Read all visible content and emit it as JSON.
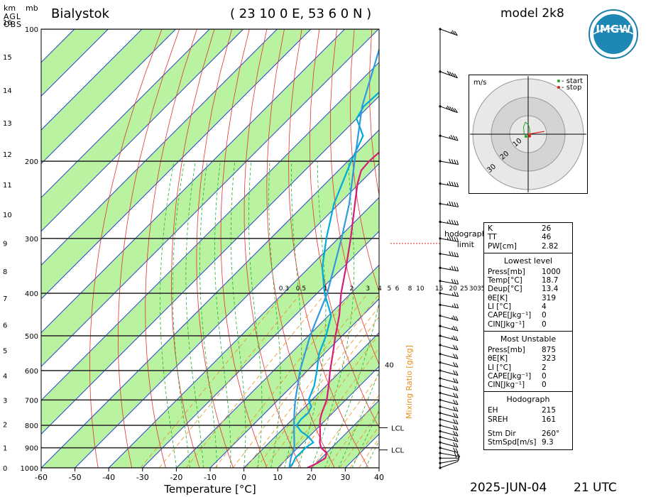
{
  "header": {
    "units_km": "km",
    "units_mb": "mb",
    "agl": "AGL",
    "obs": "OBS",
    "station": "Bialystok",
    "coords": "( 23 10 0 E, 53 6 0 N )",
    "model": "model 2k8",
    "logo_text": "IMGW"
  },
  "footer": {
    "date": "2025-JUN-04",
    "time": "21 UTC"
  },
  "chart_data": {
    "type": "line",
    "subtype": "skew-T log-P thermodynamic diagram",
    "xlabel": "Temperature [°C]",
    "x_ticks": [
      "-60",
      "-50",
      "-40",
      "-30",
      "-20",
      "-10",
      "0",
      "10",
      "20",
      "30",
      "40"
    ],
    "xlim": [
      -60,
      40
    ],
    "ylim_pressure_hpa": [
      1000,
      100
    ],
    "pressure_ticks": [
      "100",
      "200",
      "300",
      "400",
      "500",
      "600",
      "700",
      "800",
      "900",
      "1000"
    ],
    "height_ticks_km": [
      "0",
      "1",
      "2",
      "3",
      "4",
      "5",
      "6",
      "7",
      "8",
      "9",
      "10",
      "11",
      "12",
      "13",
      "14",
      "15",
      "16"
    ],
    "mixing_ratio_label": "Mixing Ratio [g/kg]",
    "mixing_ratio_ticks": [
      "0.3",
      "0.5",
      "1",
      "2",
      "3",
      "4",
      "5",
      "6",
      "8",
      "10",
      "15",
      "20",
      "25",
      "30",
      "35"
    ],
    "mixing_ratio_values": [
      0.3,
      0.5,
      1,
      2,
      3,
      4,
      5,
      6,
      8,
      10,
      15,
      20,
      25,
      30,
      35
    ],
    "lcl_labels": [
      "LCL",
      "LCL"
    ],
    "lcl_pressures": [
      810,
      910
    ],
    "label_40": "40",
    "series": [
      {
        "color": "#d81b7a",
        "pressure": [
          1000,
          975,
          950,
          925,
          900,
          875,
          850,
          825,
          800,
          775,
          750,
          700,
          650,
          600,
          550,
          500,
          450,
          400,
          350,
          300,
          250,
          225,
          210,
          200,
          190,
          175,
          150,
          125,
          100
        ],
        "values": [
          18.7,
          20.3,
          21.2,
          20.1,
          16.9,
          14.9,
          13.4,
          11.7,
          9.9,
          8.2,
          6.8,
          4.4,
          0.8,
          -3.3,
          -7.4,
          -12.0,
          -16.8,
          -22.9,
          -29.0,
          -36.3,
          -45.3,
          -50.5,
          -53.3,
          -53.7,
          -53.3,
          -51.5,
          -47.5,
          -43.5,
          -40.5
        ]
      },
      {
        "color": "#00aadd",
        "pressure": [
          1000,
          975,
          950,
          925,
          900,
          875,
          850,
          825,
          800,
          775,
          750,
          725,
          700,
          650,
          600,
          550,
          500,
          450,
          400,
          350,
          300,
          250,
          200,
          175,
          160,
          150,
          125,
          100
        ],
        "values": [
          13.4,
          13.1,
          12.3,
          12.3,
          12.3,
          13.0,
          10.0,
          6.0,
          3.0,
          2.5,
          2.8,
          1.8,
          -1.0,
          -3.5,
          -7.2,
          -11.5,
          -14.8,
          -19.2,
          -27.8,
          -36.0,
          -43.5,
          -51.5,
          -59.0,
          -63.0,
          -70.0,
          -71.5,
          -70.5,
          -68.5
        ]
      },
      {
        "color": "#3399dd",
        "pressure": [
          1000,
          950,
          900,
          850,
          800,
          750,
          700,
          600,
          500,
          400,
          300,
          250,
          200,
          150,
          100
        ],
        "values": [
          13.4,
          11.0,
          9.0,
          5.7,
          2.2,
          -1.3,
          -4.9,
          -12.2,
          -19.5,
          -27.0,
          -39.0,
          -47.0,
          -58.0,
          -72.0,
          -88.0
        ]
      }
    ],
    "wind_barbs": [
      {
        "p": 100,
        "dir": 290,
        "kt": 25
      },
      {
        "p": 125,
        "dir": 290,
        "kt": 40
      },
      {
        "p": 150,
        "dir": 290,
        "kt": 45
      },
      {
        "p": 175,
        "dir": 285,
        "kt": 35
      },
      {
        "p": 200,
        "dir": 280,
        "kt": 40
      },
      {
        "p": 225,
        "dir": 280,
        "kt": 45
      },
      {
        "p": 250,
        "dir": 280,
        "kt": 45
      },
      {
        "p": 275,
        "dir": 280,
        "kt": 45
      },
      {
        "p": 300,
        "dir": 280,
        "kt": 45
      },
      {
        "p": 325,
        "dir": 280,
        "kt": 40
      },
      {
        "p": 350,
        "dir": 280,
        "kt": 35
      },
      {
        "p": 375,
        "dir": 280,
        "kt": 30
      },
      {
        "p": 400,
        "dir": 280,
        "kt": 25
      },
      {
        "p": 425,
        "dir": 280,
        "kt": 25
      },
      {
        "p": 450,
        "dir": 285,
        "kt": 25
      },
      {
        "p": 475,
        "dir": 285,
        "kt": 25
      },
      {
        "p": 500,
        "dir": 285,
        "kt": 25
      },
      {
        "p": 525,
        "dir": 285,
        "kt": 20
      },
      {
        "p": 550,
        "dir": 285,
        "kt": 20
      },
      {
        "p": 575,
        "dir": 285,
        "kt": 20
      },
      {
        "p": 600,
        "dir": 285,
        "kt": 20
      },
      {
        "p": 625,
        "dir": 285,
        "kt": 20
      },
      {
        "p": 650,
        "dir": 285,
        "kt": 20
      },
      {
        "p": 675,
        "dir": 285,
        "kt": 20
      },
      {
        "p": 700,
        "dir": 285,
        "kt": 20
      },
      {
        "p": 725,
        "dir": 285,
        "kt": 20
      },
      {
        "p": 750,
        "dir": 285,
        "kt": 20
      },
      {
        "p": 775,
        "dir": 285,
        "kt": 20
      },
      {
        "p": 800,
        "dir": 285,
        "kt": 20
      },
      {
        "p": 825,
        "dir": 285,
        "kt": 20
      },
      {
        "p": 850,
        "dir": 285,
        "kt": 20
      },
      {
        "p": 875,
        "dir": 285,
        "kt": 20
      },
      {
        "p": 900,
        "dir": 285,
        "kt": 20
      },
      {
        "p": 925,
        "dir": 280,
        "kt": 20
      },
      {
        "p": 950,
        "dir": 270,
        "kt": 15
      },
      {
        "p": 975,
        "dir": 260,
        "kt": 10
      },
      {
        "p": 1000,
        "dir": 250,
        "kt": 5
      }
    ]
  },
  "hodograph": {
    "unit": "m/s",
    "legend_start": "- start",
    "legend_stop": "- stop",
    "ring_labels": [
      "10",
      "20",
      "30"
    ],
    "points_ms": [
      [
        -1.2,
        -1.2
      ],
      [
        -2.2,
        0.5
      ],
      [
        -2.5,
        4.0
      ],
      [
        -1.5,
        6.5
      ],
      [
        0.2,
        5.0
      ],
      [
        0.8,
        2.5
      ],
      [
        1.0,
        0.0
      ],
      [
        0.8,
        -1.0
      ]
    ],
    "mean_arrow_ms": [
      3.5,
      0.6
    ]
  },
  "hodograph_limit_label": [
    "hodograph",
    "limit"
  ],
  "indices": {
    "top": [
      {
        "k": "K",
        "v": "26"
      },
      {
        "k": "TT",
        "v": "46"
      },
      {
        "k": "PW[cm]",
        "v": "2.82"
      }
    ],
    "lowest": {
      "title": "Lowest level",
      "rows": [
        {
          "k": "Press[mb]",
          "v": "1000"
        },
        {
          "k": "Temp[°C]",
          "v": "18.7"
        },
        {
          "k": "Deup[°C]",
          "v": "13.4"
        },
        {
          "k": "θE[K]",
          "v": "319"
        },
        {
          "k": "LI [°C]",
          "v": "4"
        },
        {
          "k": "CAPE[Jkg⁻¹]",
          "v": "0"
        },
        {
          "k": "CIN[Jkg⁻¹]",
          "v": "0"
        }
      ]
    },
    "unstable": {
      "title": "Most Unstable",
      "rows": [
        {
          "k": "Press[mb]",
          "v": "875"
        },
        {
          "k": "θE[K]",
          "v": "323"
        },
        {
          "k": "LI [°C]",
          "v": "2"
        },
        {
          "k": "CAPE[Jkg⁻¹]",
          "v": "0"
        },
        {
          "k": "CIN[Jkg⁻¹]",
          "v": "0"
        }
      ]
    },
    "hodograph": {
      "title": "Hodograph",
      "rows": [
        {
          "k": "EH",
          "v": "215"
        },
        {
          "k": "SREH",
          "v": "161"
        }
      ],
      "rows2": [
        {
          "k": "Stm Dir",
          "v": "260°"
        },
        {
          "k": "StmSpd[m/s]",
          "v": "9.3"
        }
      ]
    }
  },
  "colors": {
    "green_band": "#b9f2a0",
    "isotherm": "#2244cc",
    "dry_adiabat": "#e83030",
    "moist_adiabat": "#20b030",
    "mixing_ratio": "#e89020",
    "temperature": "#d81b7a",
    "dewpoint": "#00aadd",
    "parcel": "#3399dd"
  }
}
